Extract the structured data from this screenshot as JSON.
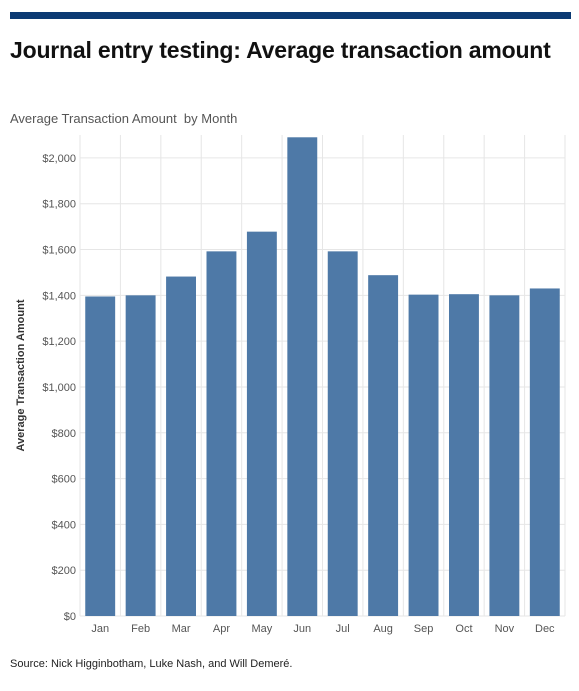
{
  "header": {
    "title": "Journal entry testing: Average transaction amount"
  },
  "source": "Source: Nick Higginbotham, Luke Nash, and Will Demeré.",
  "colors": {
    "accent_rule": "#0b3a73",
    "bar": "#4e79a7",
    "grid": "#e6e6e6"
  },
  "chart_data": {
    "type": "bar",
    "title": "Average Transaction Amount  by Month",
    "xlabel": "",
    "ylabel": "Average Transaction Amount",
    "categories": [
      "Jan",
      "Feb",
      "Mar",
      "Apr",
      "May",
      "Jun",
      "Jul",
      "Aug",
      "Sep",
      "Oct",
      "Nov",
      "Dec"
    ],
    "values": [
      1395,
      1400,
      1482,
      1592,
      1678,
      2090,
      1592,
      1488,
      1403,
      1405,
      1400,
      1430
    ],
    "ylim": [
      0,
      2100
    ],
    "y_ticks": [
      0,
      200,
      400,
      600,
      800,
      1000,
      1200,
      1400,
      1600,
      1800,
      2000
    ],
    "y_tick_labels": [
      "$0",
      "$200",
      "$400",
      "$600",
      "$800",
      "$1,000",
      "$1,200",
      "$1,400",
      "$1,600",
      "$1,800",
      "$2,000"
    ],
    "grid": true,
    "legend": "none"
  }
}
